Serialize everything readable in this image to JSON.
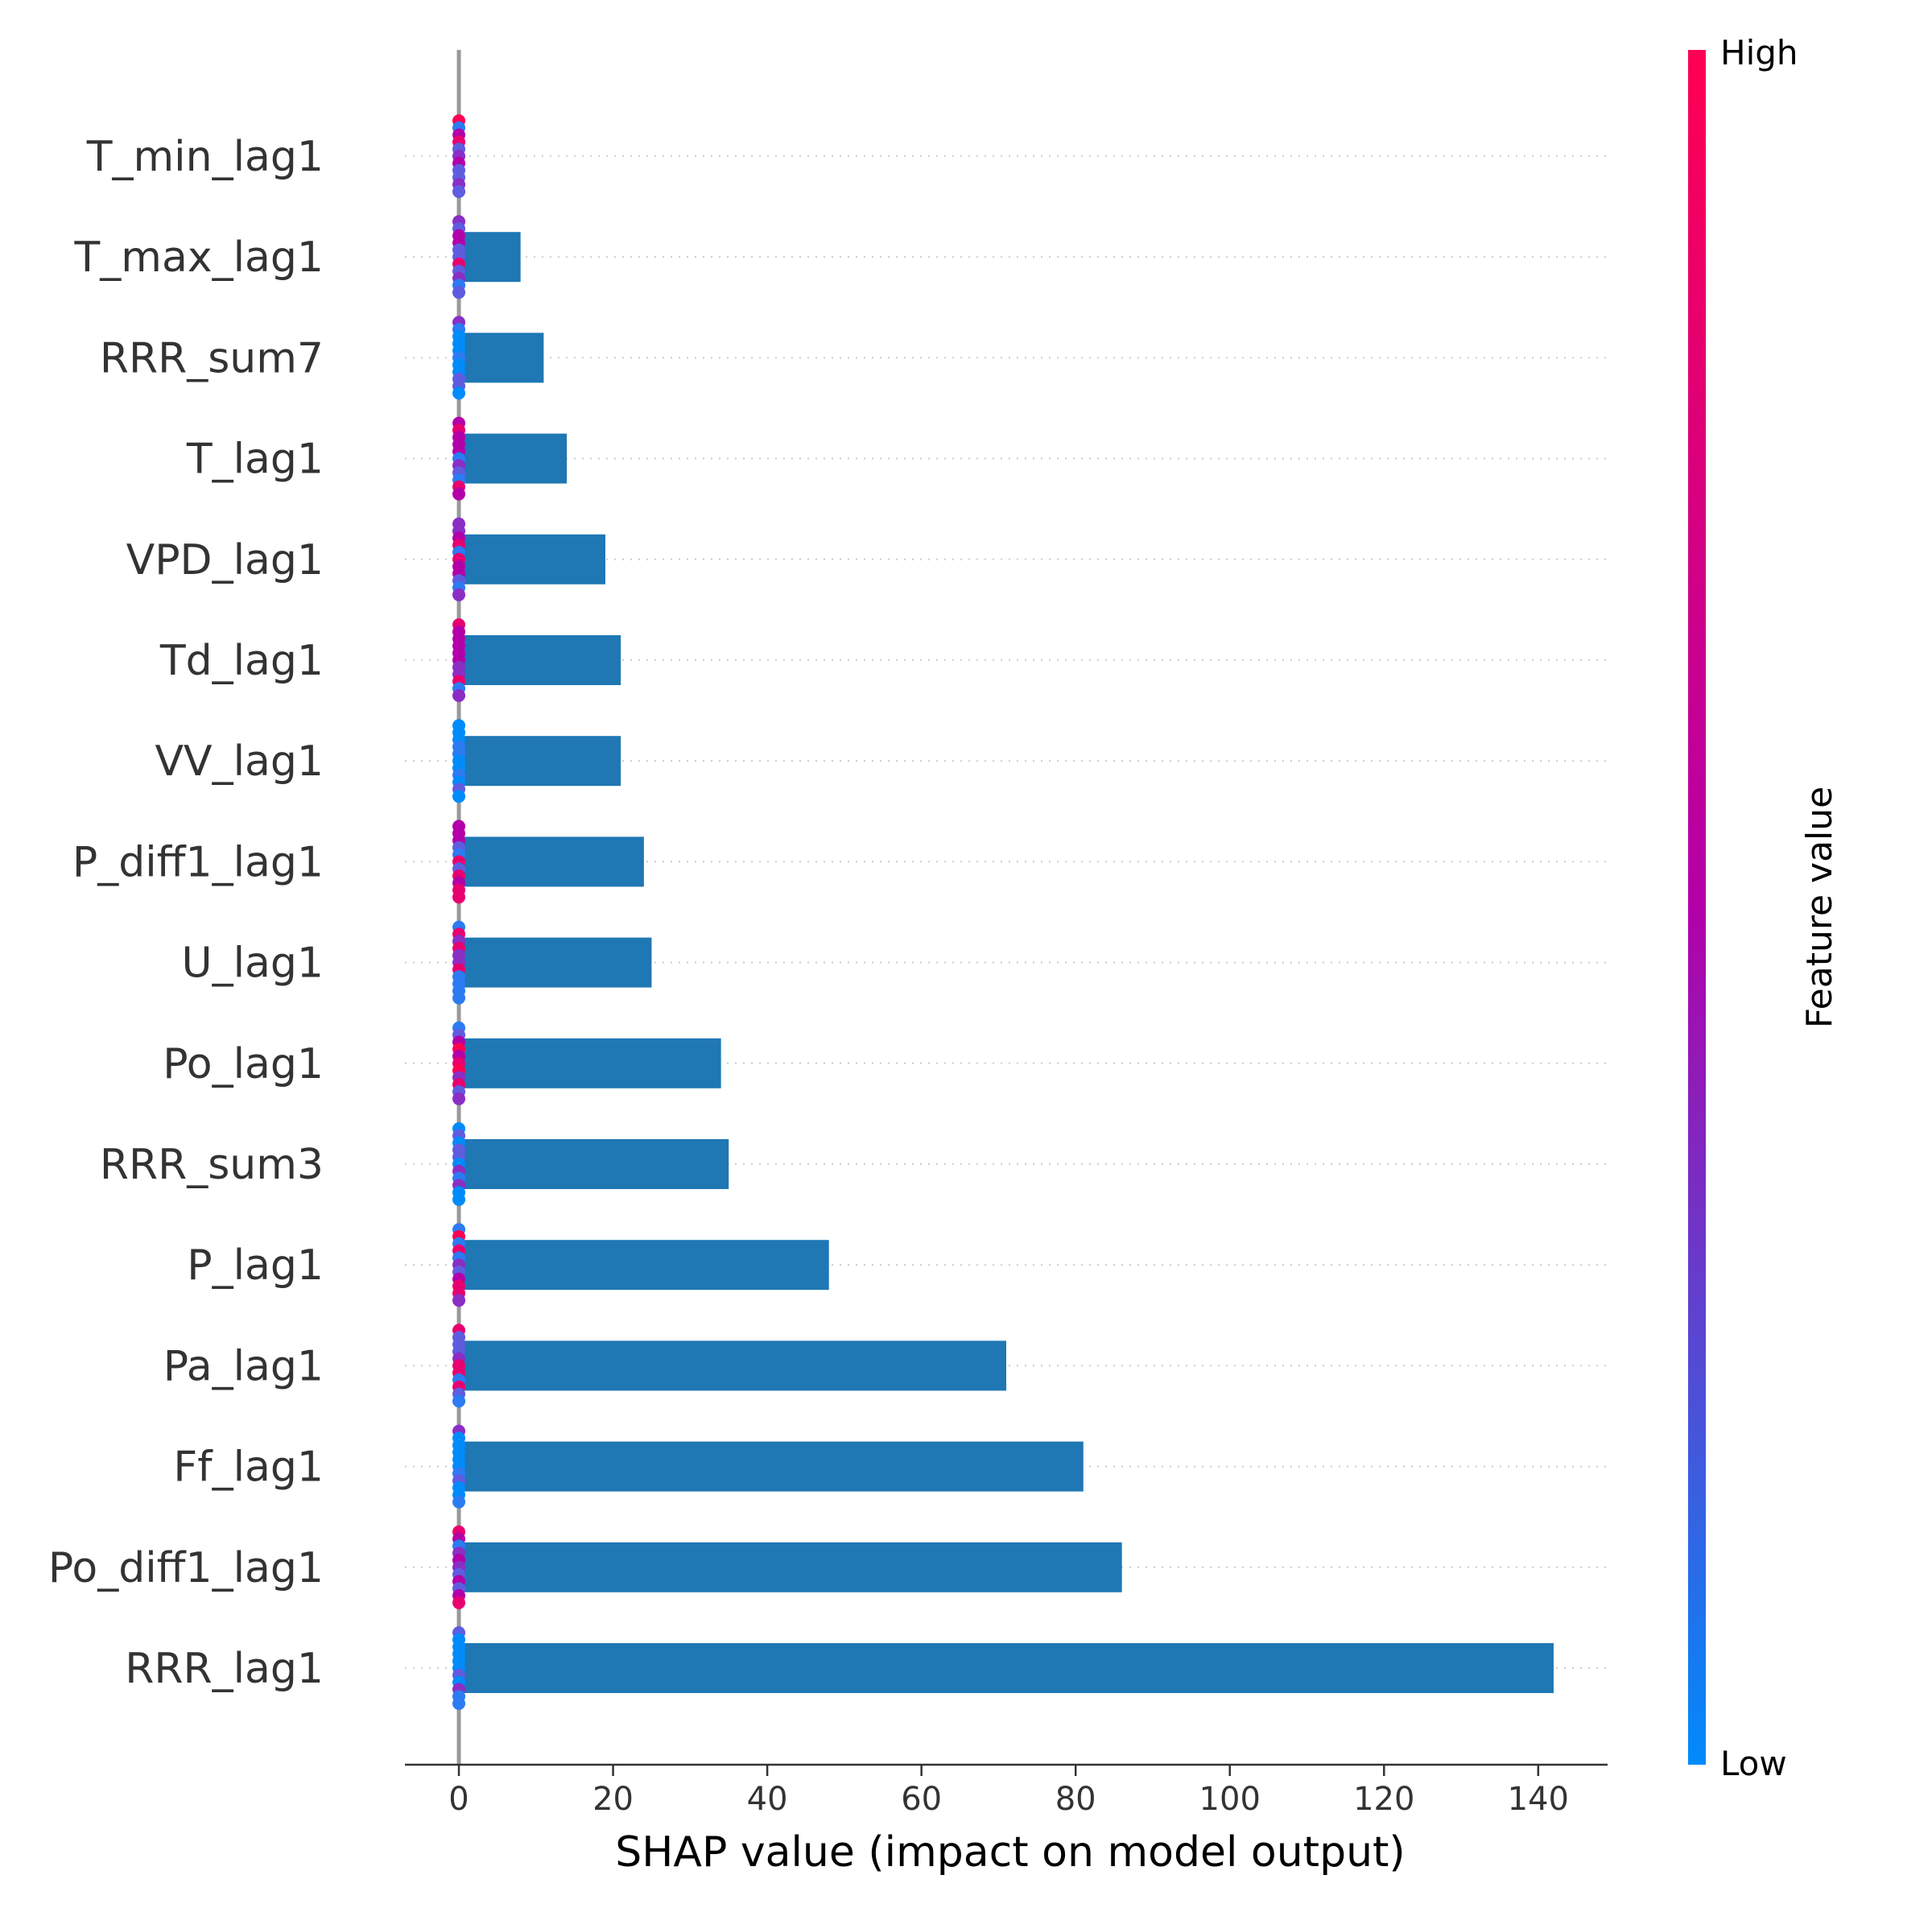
{
  "chart_data": {
    "type": "bar",
    "categories": [
      "T_min_lag1",
      "T_max_lag1",
      "RRR_sum7",
      "T_lag1",
      "VPD_lag1",
      "Td_lag1",
      "VV_lag1",
      "P_diff1_lag1",
      "U_lag1",
      "Po_lag1",
      "RRR_sum3",
      "P_lag1",
      "Pa_lag1",
      "Ff_lag1",
      "Po_diff1_lag1",
      "RRR_lag1"
    ],
    "values": [
      0,
      8,
      11,
      14,
      19,
      21,
      21,
      24,
      25,
      34,
      35,
      48,
      71,
      81,
      86,
      142
    ],
    "xlabel": "SHAP value (impact on model output)",
    "xlim": [
      -7,
      149
    ],
    "xticks": [
      0,
      20,
      40,
      60,
      80,
      100,
      120,
      140
    ],
    "bar_color": "#1f77b4",
    "grid": "horizontal dotted",
    "colorbar": {
      "title": "Feature value",
      "high_label": "High",
      "low_label": "Low",
      "high_color": "#ff0052",
      "mid_color": "#b300a8",
      "low_color": "#008bfb"
    }
  }
}
